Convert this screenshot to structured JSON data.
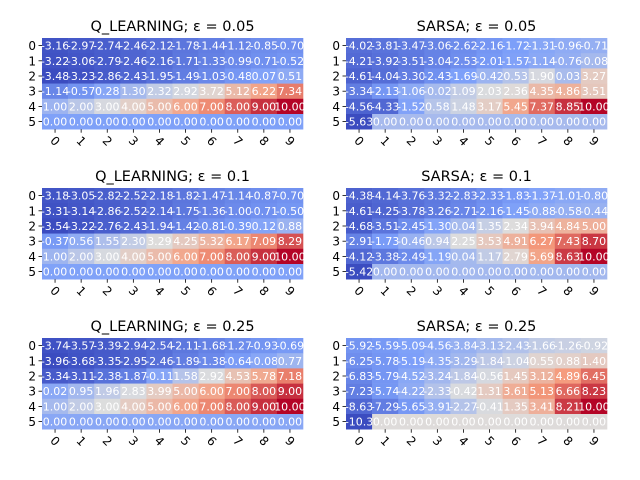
{
  "chart_data": [
    {
      "type": "heatmap",
      "title": "Q_LEARNING; ε = 0.05",
      "x_ticks": [
        "0",
        "1",
        "2",
        "3",
        "4",
        "5",
        "6",
        "7",
        "8",
        "9"
      ],
      "y_ticks": [
        "0",
        "1",
        "2",
        "3",
        "4",
        "5"
      ],
      "colormap": "coolwarm",
      "values": [
        [
          -3.16,
          -2.97,
          -2.74,
          -2.46,
          -2.12,
          -1.78,
          -1.44,
          -1.12,
          -0.85,
          -0.7
        ],
        [
          -3.22,
          -3.06,
          -2.79,
          -2.46,
          -2.16,
          -1.71,
          -1.33,
          -0.99,
          -0.71,
          -0.52
        ],
        [
          -3.48,
          -3.23,
          -2.86,
          -2.43,
          -1.95,
          -1.49,
          -1.03,
          -0.48,
          0.07,
          0.51
        ],
        [
          -1.14,
          -0.57,
          0.28,
          1.3,
          2.32,
          2.92,
          3.72,
          5.12,
          6.22,
          7.34
        ],
        [
          1.0,
          2.0,
          3.0,
          4.0,
          5.0,
          6.0,
          7.0,
          8.0,
          9.0,
          10.0
        ],
        [
          0.0,
          0.0,
          0.0,
          0.0,
          0.0,
          0.0,
          0.0,
          0.0,
          0.0,
          0.0
        ]
      ],
      "labels": [
        [
          "-3.16",
          "-2.97",
          "-2.74",
          "-2.46",
          "-2.12",
          "-1.78",
          "-1.44",
          "-1.12",
          "-0.85",
          "-0.70"
        ],
        [
          "-3.22",
          "-3.06",
          "-2.79",
          "-2.46",
          "-2.16",
          "-1.71",
          "-1.33",
          "-0.99",
          "-0.71",
          "-0.52"
        ],
        [
          "-3.48",
          "-3.23",
          "-2.86",
          "-2.43",
          "-1.95",
          "-1.49",
          "-1.03",
          "-0.48",
          "0.07",
          "0.51"
        ],
        [
          "-1.14",
          "-0.57",
          "0.28",
          "1.30",
          "2.32",
          "2.92",
          "3.72",
          "5.12",
          "6.22",
          "7.34"
        ],
        [
          "1.00",
          "2.00",
          "3.00",
          "4.00",
          "5.00",
          "6.00",
          "7.00",
          "8.00",
          "9.00",
          "10.00"
        ],
        [
          "0.00",
          "0.00",
          "0.00",
          "0.00",
          "0.00",
          "0.00",
          "0.00",
          "0.00",
          "0.00",
          "0.00"
        ]
      ]
    },
    {
      "type": "heatmap",
      "title": "SARSA; ε = 0.05",
      "x_ticks": [
        "0",
        "1",
        "2",
        "3",
        "4",
        "5",
        "6",
        "7",
        "8",
        "9"
      ],
      "y_ticks": [
        "0",
        "1",
        "2",
        "3",
        "4",
        "5"
      ],
      "colormap": "coolwarm",
      "values": [
        [
          -4.02,
          -3.81,
          -3.47,
          -3.06,
          -2.62,
          -2.16,
          -1.72,
          -1.31,
          -0.96,
          -0.71
        ],
        [
          -4.21,
          -3.92,
          -3.51,
          -3.04,
          -2.53,
          -2.01,
          -1.57,
          -1.14,
          -0.76,
          -0.08
        ],
        [
          -4.61,
          -4.04,
          -3.3,
          -2.43,
          -1.69,
          -0.42,
          0.53,
          1.9,
          0.03,
          3.27
        ],
        [
          -3.34,
          -2.13,
          -1.06,
          -0.02,
          1.09,
          2.03,
          2.36,
          4.35,
          4.86,
          3.51
        ],
        [
          -4.56,
          -4.33,
          -1.52,
          0.58,
          1.48,
          3.17,
          5.45,
          7.37,
          8.85,
          10.0
        ],
        [
          -5.63,
          0.0,
          0.0,
          0.0,
          0.0,
          0.0,
          0.0,
          0.0,
          0.0,
          0.0
        ]
      ],
      "labels": [
        [
          "-4.02",
          "-3.81",
          "-3.47",
          "-3.06",
          "-2.62",
          "-2.16",
          "-1.72",
          "-1.31",
          "-0.96",
          "-0.71"
        ],
        [
          "-4.21",
          "-3.92",
          "-3.51",
          "-3.04",
          "-2.53",
          "-2.01",
          "-1.57",
          "-1.14",
          "-0.76",
          "-0.08"
        ],
        [
          "-4.61",
          "-4.04",
          "-3.30",
          "-2.43",
          "-1.69",
          "-0.42",
          "0.53",
          "1.90",
          "0.03",
          "3.27"
        ],
        [
          "-3.34",
          "-2.13",
          "-1.06",
          "-0.02",
          "1.09",
          "2.03",
          "2.36",
          "4.35",
          "4.86",
          "3.51"
        ],
        [
          "-4.56",
          "-4.33",
          "-1.52",
          "0.58",
          "1.48",
          "3.17",
          "5.45",
          "7.37",
          "8.85",
          "10.00"
        ],
        [
          "-5.63",
          "0.00",
          "0.00",
          "0.00",
          "0.00",
          "0.00",
          "0.00",
          "0.00",
          "0.00",
          "0.00"
        ]
      ]
    },
    {
      "type": "heatmap",
      "title": "Q_LEARNING; ε = 0.1",
      "x_ticks": [
        "0",
        "1",
        "2",
        "3",
        "4",
        "5",
        "6",
        "7",
        "8",
        "9"
      ],
      "y_ticks": [
        "0",
        "1",
        "2",
        "3",
        "4",
        "5"
      ],
      "colormap": "coolwarm",
      "values": [
        [
          -3.18,
          -3.05,
          -2.82,
          -2.52,
          -2.18,
          -1.82,
          -1.47,
          -1.14,
          -0.87,
          -0.7
        ],
        [
          -3.31,
          -3.14,
          -2.86,
          -2.52,
          -2.14,
          -1.75,
          -1.36,
          -1.0,
          -0.71,
          -0.5
        ],
        [
          -3.54,
          -3.22,
          -2.76,
          -2.43,
          -1.94,
          -1.42,
          -0.81,
          -0.39,
          0.12,
          0.88
        ],
        [
          -0.37,
          0.56,
          1.55,
          2.3,
          3.29,
          4.25,
          5.32,
          6.17,
          7.09,
          8.29
        ],
        [
          1.0,
          2.0,
          3.0,
          4.0,
          5.0,
          6.0,
          7.0,
          8.0,
          9.0,
          10.0
        ],
        [
          0.0,
          0.0,
          0.0,
          0.0,
          0.0,
          0.0,
          0.0,
          0.0,
          0.0,
          0.0
        ]
      ],
      "labels": [
        [
          "-3.18",
          "-3.05",
          "-2.82",
          "-2.52",
          "-2.18",
          "-1.82",
          "-1.47",
          "-1.14",
          "-0.87",
          "-0.70"
        ],
        [
          "-3.31",
          "-3.14",
          "-2.86",
          "-2.52",
          "-2.14",
          "-1.75",
          "-1.36",
          "-1.00",
          "-0.71",
          "-0.50"
        ],
        [
          "-3.54",
          "-3.22",
          "-2.76",
          "-2.43",
          "-1.94",
          "-1.42",
          "-0.81",
          "-0.39",
          "0.12",
          "0.88"
        ],
        [
          "-0.37",
          "0.56",
          "1.55",
          "2.30",
          "3.29",
          "4.25",
          "5.32",
          "6.17",
          "7.09",
          "8.29"
        ],
        [
          "1.00",
          "2.00",
          "3.00",
          "4.00",
          "5.00",
          "6.00",
          "7.00",
          "8.00",
          "9.00",
          "10.00"
        ],
        [
          "0.00",
          "0.00",
          "0.00",
          "0.00",
          "0.00",
          "0.00",
          "0.00",
          "0.00",
          "0.00",
          "0.00"
        ]
      ]
    },
    {
      "type": "heatmap",
      "title": "SARSA; ε = 0.1",
      "x_ticks": [
        "0",
        "1",
        "2",
        "3",
        "4",
        "5",
        "6",
        "7",
        "8",
        "9"
      ],
      "y_ticks": [
        "0",
        "1",
        "2",
        "3",
        "4",
        "5"
      ],
      "colormap": "coolwarm",
      "values": [
        [
          -4.38,
          -4.14,
          -3.76,
          -3.32,
          -2.83,
          -2.33,
          -1.83,
          -1.37,
          -1.01,
          -0.8
        ],
        [
          -4.61,
          -4.25,
          -3.78,
          -3.26,
          -2.71,
          -2.16,
          -1.45,
          -0.88,
          -0.58,
          -0.44
        ],
        [
          -4.68,
          -3.51,
          -2.45,
          -1.3,
          0.04,
          1.35,
          2.34,
          3.94,
          4.84,
          5.0
        ],
        [
          -2.91,
          -1.73,
          -0.46,
          0.94,
          2.25,
          3.53,
          4.91,
          6.27,
          7.43,
          8.7
        ],
        [
          -4.12,
          -3.38,
          -2.49,
          -1.19,
          0.04,
          1.17,
          2.79,
          5.69,
          8.63,
          10.0
        ],
        [
          -5.42,
          0.0,
          0.0,
          0.0,
          0.0,
          0.0,
          0.0,
          0.0,
          0.0,
          0.0
        ]
      ],
      "labels": [
        [
          "-4.38",
          "-4.14",
          "-3.76",
          "-3.32",
          "-2.83",
          "-2.33",
          "-1.83",
          "-1.37",
          "-1.01",
          "-0.80"
        ],
        [
          "-4.61",
          "-4.25",
          "-3.78",
          "-3.26",
          "-2.71",
          "-2.16",
          "-1.45",
          "-0.88",
          "-0.58",
          "-0.44"
        ],
        [
          "-4.68",
          "-3.51",
          "-2.45",
          "-1.30",
          "0.04",
          "1.35",
          "2.34",
          "3.94",
          "4.84",
          "5.00"
        ],
        [
          "-2.91",
          "-1.73",
          "-0.46",
          "0.94",
          "2.25",
          "3.53",
          "4.91",
          "6.27",
          "7.43",
          "8.70"
        ],
        [
          "-4.12",
          "-3.38",
          "-2.49",
          "-1.19",
          "0.04",
          "1.17",
          "2.79",
          "5.69",
          "8.63",
          "10.00"
        ],
        [
          "-5.42",
          "0.00",
          "0.00",
          "0.00",
          "0.00",
          "0.00",
          "0.00",
          "0.00",
          "0.00",
          "0.00"
        ]
      ]
    },
    {
      "type": "heatmap",
      "title": "Q_LEARNING; ε = 0.25",
      "x_ticks": [
        "0",
        "1",
        "2",
        "3",
        "4",
        "5",
        "6",
        "7",
        "8",
        "9"
      ],
      "y_ticks": [
        "0",
        "1",
        "2",
        "3",
        "4",
        "5"
      ],
      "colormap": "coolwarm",
      "values": [
        [
          -3.74,
          -3.57,
          -3.39,
          -2.94,
          -2.54,
          -2.11,
          -1.68,
          -1.27,
          -0.93,
          -0.69
        ],
        [
          -3.96,
          -3.68,
          -3.35,
          -2.95,
          -2.46,
          -1.89,
          -1.38,
          -0.64,
          -0.08,
          0.77
        ],
        [
          -3.34,
          -3.11,
          -2.38,
          -1.87,
          -0.11,
          1.58,
          2.92,
          4.53,
          5.78,
          7.18
        ],
        [
          0.02,
          0.95,
          1.96,
          2.83,
          3.99,
          5.0,
          6.0,
          7.0,
          8.0,
          9.0
        ],
        [
          1.0,
          2.0,
          3.0,
          4.0,
          5.0,
          6.0,
          7.0,
          8.0,
          9.0,
          10.0
        ],
        [
          0.0,
          0.0,
          0.0,
          0.0,
          0.0,
          0.0,
          0.0,
          0.0,
          0.0,
          0.0
        ]
      ],
      "labels": [
        [
          "-3.74",
          "-3.57",
          "-3.39",
          "-2.94",
          "-2.54",
          "-2.11",
          "-1.68",
          "-1.27",
          "-0.93",
          "-0.69"
        ],
        [
          "-3.96",
          "-3.68",
          "-3.35",
          "-2.95",
          "-2.46",
          "-1.89",
          "-1.38",
          "-0.64",
          "-0.08",
          "0.77"
        ],
        [
          "-3.34",
          "-3.11",
          "-2.38",
          "-1.87",
          "-0.11",
          "1.58",
          "2.92",
          "4.53",
          "5.78",
          "7.18"
        ],
        [
          "0.02",
          "0.95",
          "1.96",
          "2.83",
          "3.99",
          "5.00",
          "6.00",
          "7.00",
          "8.00",
          "9.00"
        ],
        [
          "1.00",
          "2.00",
          "3.00",
          "4.00",
          "5.00",
          "6.00",
          "7.00",
          "8.00",
          "9.00",
          "10.00"
        ],
        [
          "0.00",
          "0.00",
          "0.00",
          "0.00",
          "0.00",
          "0.00",
          "0.00",
          "0.00",
          "0.00",
          "0.00"
        ]
      ]
    },
    {
      "type": "heatmap",
      "title": "SARSA; ε = 0.25",
      "x_ticks": [
        "0",
        "1",
        "2",
        "3",
        "4",
        "5",
        "6",
        "7",
        "8",
        "9"
      ],
      "y_ticks": [
        "0",
        "1",
        "2",
        "3",
        "4",
        "5"
      ],
      "colormap": "coolwarm",
      "values": [
        [
          -5.92,
          -5.59,
          -5.09,
          -4.56,
          -3.84,
          -3.13,
          -2.43,
          -1.66,
          -1.26,
          -0.92
        ],
        [
          -6.25,
          -5.78,
          -5.19,
          -4.35,
          -3.29,
          -1.84,
          -1.04,
          0.55,
          0.88,
          1.4
        ],
        [
          -6.83,
          -5.79,
          -4.52,
          -3.24,
          -1.84,
          -0.56,
          1.45,
          3.12,
          4.89,
          6.45
        ],
        [
          -7.23,
          -5.74,
          -4.22,
          -2.33,
          -0.42,
          1.31,
          3.61,
          5.13,
          6.66,
          8.23
        ],
        [
          -8.63,
          -7.29,
          -5.65,
          -3.91,
          -2.27,
          -0.41,
          1.35,
          3.41,
          8.21,
          10.0
        ],
        [
          -10.3,
          0.0,
          0.0,
          0.0,
          0.0,
          0.0,
          0.0,
          0.0,
          0.0,
          0.0
        ]
      ],
      "labels": [
        [
          "-5.92",
          "-5.59",
          "-5.09",
          "-4.56",
          "-3.84",
          "-3.13",
          "-2.43",
          "-1.66",
          "-1.26",
          "-0.92"
        ],
        [
          "-6.25",
          "-5.78",
          "-5.19",
          "-4.35",
          "-3.29",
          "-1.84",
          "-1.04",
          "0.55",
          "0.88",
          "1.40"
        ],
        [
          "-6.83",
          "-5.79",
          "-4.52",
          "-3.24",
          "-1.84",
          "-0.56",
          "1.45",
          "3.12",
          "4.89",
          "6.45"
        ],
        [
          "-7.23",
          "-5.74",
          "-4.22",
          "-2.33",
          "-0.42",
          "1.31",
          "3.61",
          "5.13",
          "6.66",
          "8.23"
        ],
        [
          "-8.63",
          "-7.29",
          "-5.65",
          "-3.91",
          "-2.27",
          "-0.41",
          "1.35",
          "3.41",
          "8.21",
          "10.00"
        ],
        [
          "-10.3",
          "0.00",
          "0.00",
          "0.00",
          "0.00",
          "0.00",
          "0.00",
          "0.00",
          "0.00",
          "0.00"
        ]
      ]
    }
  ]
}
